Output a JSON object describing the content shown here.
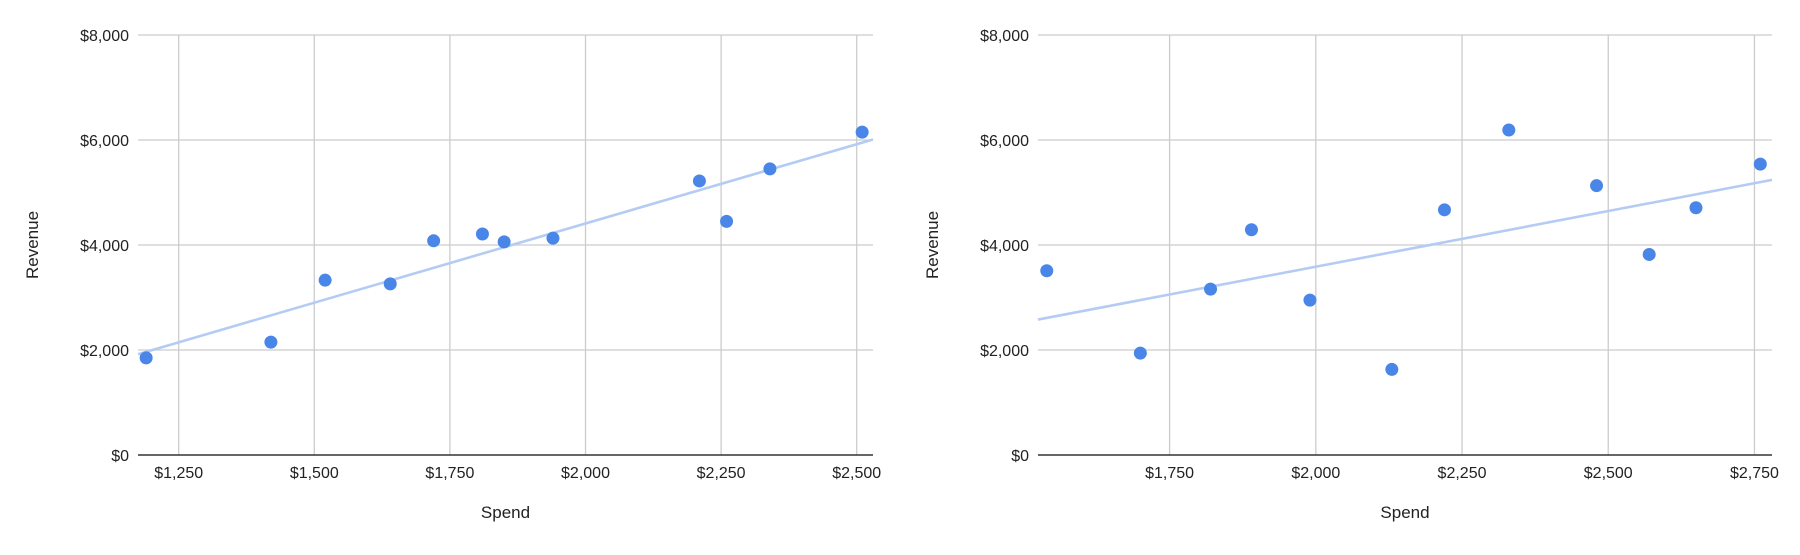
{
  "chart_data": [
    {
      "type": "scatter",
      "title": "",
      "xlabel": "Spend",
      "ylabel": "Revenue",
      "xlim": [
        1175,
        2530
      ],
      "ylim": [
        0,
        8000
      ],
      "x_ticks": [
        1250,
        1500,
        1750,
        2000,
        2250,
        2500
      ],
      "x_tick_labels": [
        "$1,250",
        "$1,500",
        "$1,750",
        "$2,000",
        "$2,250",
        "$2,500"
      ],
      "y_ticks": [
        0,
        2000,
        4000,
        6000,
        8000
      ],
      "y_tick_labels": [
        "$0",
        "$2,000",
        "$4,000",
        "$6,000",
        "$8,000"
      ],
      "grid": true,
      "legend": "none",
      "point_color": "#4A86E8",
      "trendline_color": "#B4CCF4",
      "points": [
        {
          "x": 1190,
          "y": 1850
        },
        {
          "x": 1420,
          "y": 2150
        },
        {
          "x": 1520,
          "y": 3330
        },
        {
          "x": 1640,
          "y": 3260
        },
        {
          "x": 1720,
          "y": 4080
        },
        {
          "x": 1810,
          "y": 4210
        },
        {
          "x": 1850,
          "y": 4060
        },
        {
          "x": 1940,
          "y": 4130
        },
        {
          "x": 2210,
          "y": 5220
        },
        {
          "x": 2260,
          "y": 4450
        },
        {
          "x": 2340,
          "y": 5450
        },
        {
          "x": 2510,
          "y": 6150
        }
      ],
      "trendline": {
        "x": [
          1175,
          2530
        ],
        "y": [
          1920,
          6010
        ]
      }
    },
    {
      "type": "scatter",
      "title": "",
      "xlabel": "Spend",
      "ylabel": "Revenue",
      "xlim": [
        1525,
        2780
      ],
      "ylim": [
        0,
        8000
      ],
      "x_ticks": [
        1750,
        2000,
        2250,
        2500,
        2750
      ],
      "x_tick_labels": [
        "$1,750",
        "$2,000",
        "$2,250",
        "$2,500",
        "$2,750"
      ],
      "y_ticks": [
        0,
        2000,
        4000,
        6000,
        8000
      ],
      "y_tick_labels": [
        "$0",
        "$2,000",
        "$4,000",
        "$6,000",
        "$8,000"
      ],
      "grid": true,
      "legend": "none",
      "point_color": "#4A86E8",
      "trendline_color": "#B4CCF4",
      "points": [
        {
          "x": 1540,
          "y": 3510
        },
        {
          "x": 1700,
          "y": 1940
        },
        {
          "x": 1820,
          "y": 3160
        },
        {
          "x": 1890,
          "y": 4290
        },
        {
          "x": 1990,
          "y": 2950
        },
        {
          "x": 2130,
          "y": 1630
        },
        {
          "x": 2220,
          "y": 4670
        },
        {
          "x": 2330,
          "y": 6190
        },
        {
          "x": 2480,
          "y": 5130
        },
        {
          "x": 2570,
          "y": 3820
        },
        {
          "x": 2650,
          "y": 4710
        },
        {
          "x": 2760,
          "y": 5540
        }
      ],
      "trendline": {
        "x": [
          1525,
          2780
        ],
        "y": [
          2580,
          5240
        ]
      }
    }
  ]
}
